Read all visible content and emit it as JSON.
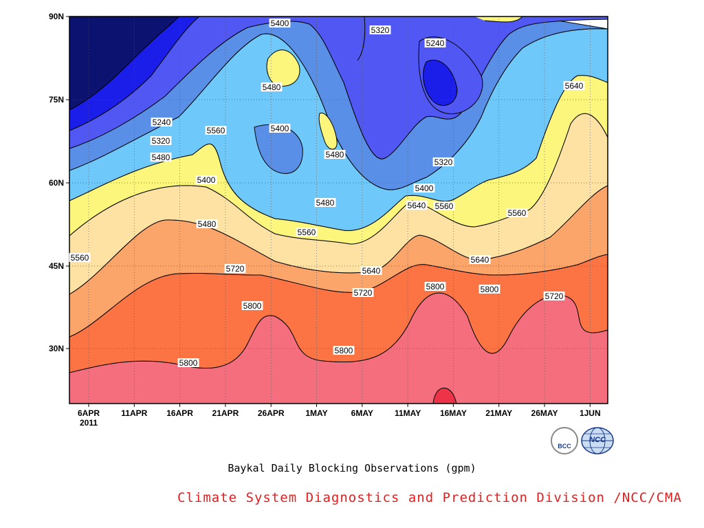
{
  "chart_data": {
    "type": "contour",
    "title": "Baykal Daily Blocking Observations (gpm)",
    "x_axis": {
      "tick_labels": [
        "6APR",
        "11APR",
        "16APR",
        "21APR",
        "26APR",
        "1MAY",
        "6MAY",
        "11MAY",
        "16MAY",
        "21MAY",
        "26MAY",
        "1JUN"
      ],
      "year_label": "2011"
    },
    "y_axis": {
      "tick_labels": [
        "30N",
        "45N",
        "60N",
        "75N",
        "90N"
      ],
      "ylim": [
        "20N",
        "90N"
      ]
    },
    "grid": "dotted",
    "levels": [
      5160,
      5240,
      5320,
      5400,
      5480,
      5560,
      5640,
      5720,
      5800,
      5880
    ],
    "contour_labels": [
      "5400",
      "5320",
      "5240",
      "5480",
      "5400",
      "5240",
      "5320",
      "5480",
      "5400",
      "5480",
      "5320",
      "5560",
      "5400",
      "5480",
      "5560",
      "5480",
      "5560",
      "5640",
      "5640",
      "5560",
      "5560",
      "5640",
      "5720",
      "5640",
      "5720",
      "5800",
      "5800",
      "5800",
      "5720",
      "5800",
      "5800"
    ],
    "colors": [
      "#0b1270",
      "#1b1ee8",
      "#5057f2",
      "#5a8fe8",
      "#6ec8fa",
      "#fcf77c",
      "#fde2a3",
      "#fca56b",
      "#fc7444",
      "#f46e7e",
      "#ec3348"
    ]
  },
  "credit": "Climate System Diagnostics and Prediction Division /NCC/CMA",
  "logos": {
    "bcc": "BCC",
    "ncc": "NCC"
  }
}
